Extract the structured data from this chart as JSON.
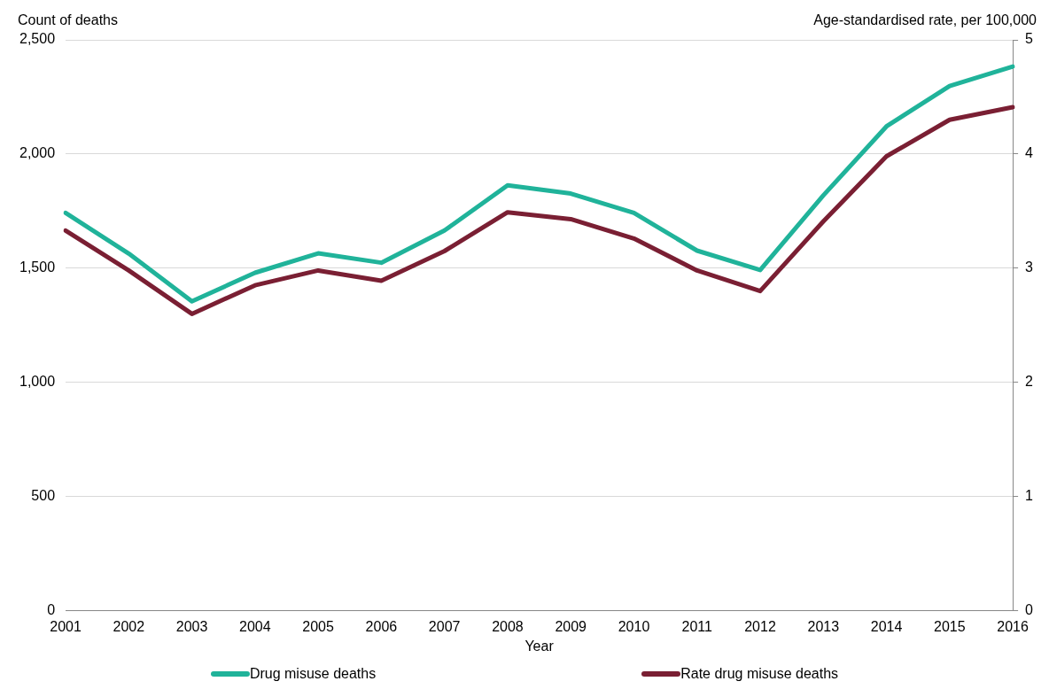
{
  "chart_data": {
    "type": "line",
    "xlabel": "Year",
    "ylabel": "Count of deaths",
    "y2label": "Age-standardised rate, per 100,000",
    "categories": [
      "2001",
      "2002",
      "2003",
      "2004",
      "2005",
      "2006",
      "2007",
      "2008",
      "2009",
      "2010",
      "2011",
      "2012",
      "2013",
      "2014",
      "2015",
      "2016"
    ],
    "series": [
      {
        "name": "Drug misuse deaths",
        "color": "#20b39a",
        "values": [
          1742,
          1564,
          1355,
          1480,
          1565,
          1524,
          1665,
          1863,
          1827,
          1742,
          1577,
          1492,
          1819,
          2121,
          2298,
          2383
        ]
      },
      {
        "name": "Rate drug misuse deaths",
        "color": "#7a1f33",
        "axis": "y2",
        "values": [
          3.33,
          2.98,
          2.6,
          2.85,
          2.98,
          2.89,
          3.15,
          3.49,
          3.43,
          3.26,
          2.98,
          2.8,
          3.41,
          3.98,
          4.3,
          4.41
        ]
      }
    ],
    "ylim": [
      0,
      2500
    ],
    "yticks": [
      0,
      500,
      {
        "value": 1000,
        "label": "1,000"
      },
      {
        "value": 1500,
        "label": "1,500"
      },
      {
        "value": 2000,
        "label": "2,000"
      },
      {
        "value": 2500,
        "label": "2,500"
      }
    ],
    "y2lim": [
      0,
      5
    ],
    "y2ticks": [
      0,
      1,
      2,
      3,
      4,
      5
    ],
    "grid": "y",
    "legend": "bottom",
    "marker": "none",
    "line_style": "solid"
  }
}
